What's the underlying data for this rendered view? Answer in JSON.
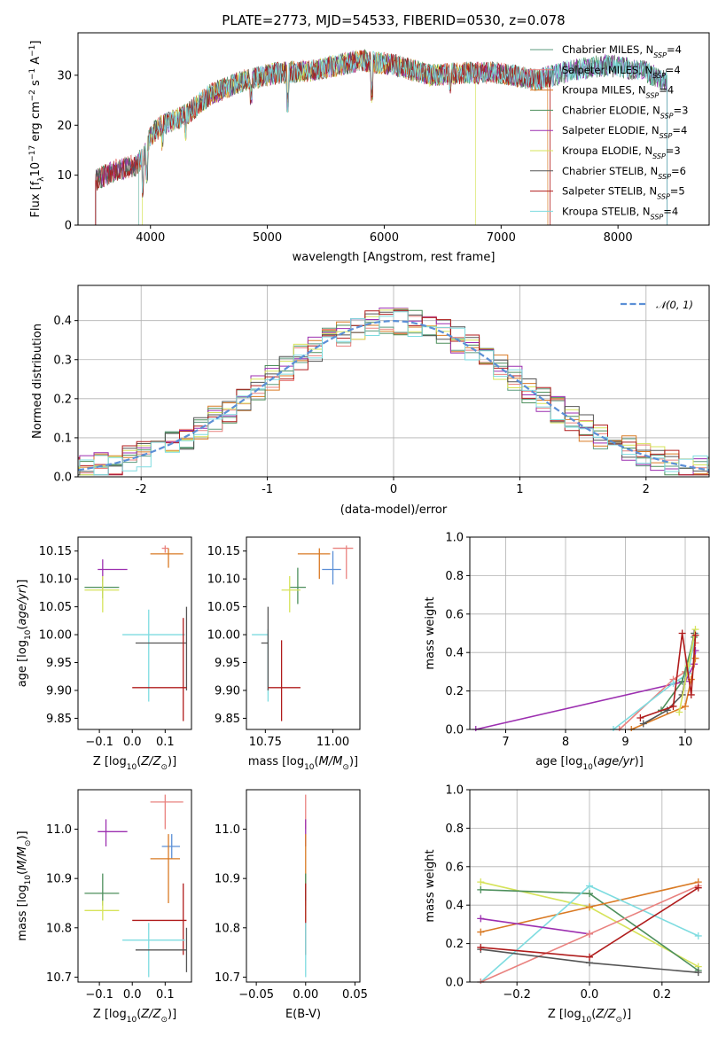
{
  "chart_data": [
    {
      "id": "spectrum",
      "type": "line",
      "title": "PLATE=2773, MJD=54533, FIBERID=0530, z=0.078",
      "xlabel": "wavelength [Angstrom, rest frame]",
      "ylabel_parts": [
        "Flux [f",
        "λ",
        "10",
        "−17",
        " erg cm",
        "−2",
        " s",
        "−1",
        " A",
        "−1",
        "]"
      ],
      "xlim": [
        3380,
        8780
      ],
      "ylim": [
        0,
        38.5
      ],
      "xticks": [
        4000,
        5000,
        6000,
        7000,
        8000
      ],
      "yticks": [
        0,
        10,
        20,
        30
      ],
      "grid": false,
      "legend_loc": "right",
      "series": [
        {
          "base": "Chabrier MILES, N",
          "sub": "SSP",
          "tail": "=4",
          "color": "#5b9b7e"
        },
        {
          "base": "Salpeter MILES, N",
          "sub": "SSP",
          "tail": "=4",
          "color": "#e9827f"
        },
        {
          "base": "Kroupa MILES, N",
          "sub": "SSP",
          "tail": "=4",
          "color": "#d97a24"
        },
        {
          "base": "Chabrier ELODIE, N",
          "sub": "SSP",
          "tail": "=3",
          "color": "#4d8f5c"
        },
        {
          "base": "Salpeter ELODIE, N",
          "sub": "SSP",
          "tail": "=4",
          "color": "#9c2fb0"
        },
        {
          "base": "Kroupa ELODIE, N",
          "sub": "SSP",
          "tail": "=3",
          "color": "#d6e35a"
        },
        {
          "base": "Chabrier STELIB, N",
          "sub": "SSP",
          "tail": "=6",
          "color": "#555555"
        },
        {
          "base": "Salpeter STELIB, N",
          "sub": "SSP",
          "tail": "=5",
          "color": "#b01c1c"
        },
        {
          "base": "Kroupa STELIB, N",
          "sub": "SSP",
          "tail": "=4",
          "color": "#7edce0"
        }
      ],
      "continuum": [
        [
          3530,
          9
        ],
        [
          3700,
          11
        ],
        [
          3880,
          12
        ],
        [
          3950,
          14
        ],
        [
          4000,
          18
        ],
        [
          4100,
          20
        ],
        [
          4300,
          22
        ],
        [
          4500,
          26
        ],
        [
          4800,
          29
        ],
        [
          5100,
          30.5
        ],
        [
          5400,
          31
        ],
        [
          5800,
          33
        ],
        [
          6100,
          32
        ],
        [
          6400,
          30
        ],
        [
          6700,
          30.5
        ],
        [
          7000,
          30.5
        ],
        [
          7300,
          29
        ],
        [
          7600,
          31
        ],
        [
          7900,
          32
        ],
        [
          8200,
          31
        ],
        [
          8400,
          29
        ]
      ]
    },
    {
      "id": "residuals",
      "type": "histogram",
      "xlabel": "(data-model)/error",
      "ylabel": "Normed distribution",
      "xlim": [
        -2.5,
        2.5
      ],
      "ylim": [
        0,
        0.49
      ],
      "xticks": [
        -2,
        -1,
        0,
        1,
        2
      ],
      "yticks": [
        0,
        0.1,
        0.2,
        0.3,
        0.4
      ],
      "grid": true,
      "bins": 46,
      "legend": "𝒩(0, 1)",
      "gaussian_color": "#5b8fd6"
    },
    {
      "id": "age_vs_Z",
      "type": "scatter",
      "xlabel": "Z [log10(Z/Z⊙)]",
      "ylabel": "age  [log10(age/yr)]",
      "xlim": [
        -0.165,
        0.18
      ],
      "ylim": [
        9.83,
        10.175
      ],
      "xticks": [
        -0.1,
        0,
        0.1
      ],
      "xticklabels": [
        "−0.1",
        "0.0",
        "0.1"
      ],
      "yticks": [
        9.85,
        9.9,
        9.95,
        10.0,
        10.05,
        10.1,
        10.15
      ],
      "yticklabels": [
        "9.85",
        "9.90",
        "9.95",
        "10.00",
        "10.05",
        "10.10",
        "10.15"
      ],
      "points": [
        {
          "x": 0.1,
          "y": 10.155,
          "xe": [
            0.09,
            0.11
          ],
          "ye": [
            10.147,
            10.16
          ],
          "color": "#e9827f"
        },
        {
          "x": 0.11,
          "y": 10.145,
          "xe": [
            0.055,
            0.155
          ],
          "ye": [
            10.12,
            10.155
          ],
          "color": "#d97a24"
        },
        {
          "x": -0.09,
          "y": 10.117,
          "xe": [
            -0.105,
            -0.015
          ],
          "ye": [
            10.095,
            10.135
          ],
          "color": "#9c2fb0"
        },
        {
          "x": -0.09,
          "y": 10.085,
          "xe": [
            -0.145,
            -0.04
          ],
          "ye": [
            10.065,
            10.1
          ],
          "color": "#4d8f5c"
        },
        {
          "x": -0.09,
          "y": 10.08,
          "xe": [
            -0.145,
            -0.04
          ],
          "ye": [
            10.04,
            10.105
          ],
          "color": "#d6e35a"
        },
        {
          "x": 0.05,
          "y": 10.0,
          "xe": [
            -0.03,
            0.16
          ],
          "ye": [
            9.88,
            10.045
          ],
          "color": "#7edce0"
        },
        {
          "x": 0.165,
          "y": 9.985,
          "xe": [
            0.01,
            0.165
          ],
          "ye": [
            9.9,
            10.05
          ],
          "color": "#555555"
        },
        {
          "x": 0.155,
          "y": 9.905,
          "xe": [
            0.0,
            0.165
          ],
          "ye": [
            9.845,
            10.03
          ],
          "color": "#b01c1c"
        }
      ]
    },
    {
      "id": "age_vs_mass",
      "type": "scatter",
      "xlabel": "mass [log10(M/M⊙)]",
      "ylabel": "",
      "xlim": [
        10.68,
        11.1
      ],
      "ylim": [
        9.83,
        10.175
      ],
      "xticks": [
        10.75,
        11.0
      ],
      "xticklabels": [
        "10.75",
        "11.00"
      ],
      "yticks": [
        9.85,
        9.9,
        9.95,
        10.0,
        10.05,
        10.1,
        10.15
      ],
      "yticklabels": [
        "9.85",
        "9.90",
        "9.95",
        "10.00",
        "10.05",
        "10.10",
        "10.15"
      ],
      "points": [
        {
          "x": 11.05,
          "y": 10.155,
          "xe": [
            11.0,
            11.075
          ],
          "ye": [
            10.1,
            10.16
          ],
          "color": "#e9827f"
        },
        {
          "x": 10.95,
          "y": 10.145,
          "xe": [
            10.87,
            10.99
          ],
          "ye": [
            10.1,
            10.155
          ],
          "color": "#d97a24"
        },
        {
          "x": 11.0,
          "y": 10.117,
          "xe": [
            10.96,
            11.03
          ],
          "ye": [
            10.09,
            10.15
          ],
          "color": "#5b8fd6"
        },
        {
          "x": 10.87,
          "y": 10.085,
          "xe": [
            10.84,
            10.9
          ],
          "ye": [
            10.055,
            10.12
          ],
          "color": "#4d8f5c"
        },
        {
          "x": 10.84,
          "y": 10.08,
          "xe": [
            10.81,
            10.88
          ],
          "ye": [
            10.04,
            10.105
          ],
          "color": "#d6e35a"
        },
        {
          "x": 10.76,
          "y": 10.0,
          "xe": [
            10.7,
            10.76
          ],
          "ye": [
            9.88,
            10.01
          ],
          "color": "#7edce0"
        },
        {
          "x": 10.76,
          "y": 9.985,
          "xe": [
            10.735,
            10.76
          ],
          "ye": [
            9.9,
            10.05
          ],
          "color": "#555555"
        },
        {
          "x": 10.81,
          "y": 9.905,
          "xe": [
            10.76,
            10.88
          ],
          "ye": [
            9.845,
            9.99
          ],
          "color": "#b01c1c"
        }
      ]
    },
    {
      "id": "mass_weight_vs_age",
      "type": "line",
      "xlabel": "age  [log10(age/yr)]",
      "ylabel": "mass weight",
      "xlim": [
        6.4,
        10.4
      ],
      "ylim": [
        0,
        1
      ],
      "xticks": [
        7,
        8,
        9,
        10
      ],
      "yticks": [
        0,
        0.2,
        0.4,
        0.6,
        0.8,
        1.0
      ],
      "yticklabels": [
        "0.0",
        "0.2",
        "0.4",
        "0.6",
        "0.8",
        "1.0"
      ],
      "grid": true,
      "series": [
        {
          "color": "#9c2fb0",
          "x": [
            6.5,
            10.0,
            10.15,
            10.17
          ],
          "y": [
            0.0,
            0.25,
            0.34,
            0.41
          ]
        },
        {
          "color": "#e9827f",
          "x": [
            8.9,
            9.8,
            10.0,
            10.17
          ],
          "y": [
            0.0,
            0.26,
            0.3,
            0.45
          ]
        },
        {
          "color": "#7edce0",
          "x": [
            8.8,
            9.8,
            10.05,
            10.17
          ],
          "y": [
            0.0,
            0.24,
            0.29,
            0.5
          ]
        },
        {
          "color": "#d97a24",
          "x": [
            9.1,
            10.0,
            10.1,
            10.17
          ],
          "y": [
            0.0,
            0.12,
            0.26,
            0.37
          ]
        },
        {
          "color": "#555555",
          "x": [
            9.3,
            9.7,
            9.95,
            10.15
          ],
          "y": [
            0.03,
            0.1,
            0.18,
            0.5
          ]
        },
        {
          "color": "#4d8f5c",
          "x": [
            9.6,
            9.95,
            10.15
          ],
          "y": [
            0.1,
            0.25,
            0.48
          ]
        },
        {
          "color": "#d6e35a",
          "x": [
            9.9,
            10.05,
            10.17
          ],
          "y": [
            0.09,
            0.33,
            0.52
          ]
        },
        {
          "color": "#b01c1c",
          "x": [
            9.25,
            9.8,
            9.95,
            10.1,
            10.17
          ],
          "y": [
            0.06,
            0.12,
            0.5,
            0.18,
            0.49
          ]
        }
      ]
    },
    {
      "id": "mass_vs_Z",
      "type": "scatter",
      "xlabel": "Z [log10(Z/Z⊙)]",
      "ylabel": "mass [log10(M/M⊙)]",
      "xlim": [
        -0.165,
        0.18
      ],
      "ylim": [
        10.69,
        11.08
      ],
      "xticks": [
        -0.1,
        0,
        0.1
      ],
      "xticklabels": [
        "−0.1",
        "0.0",
        "0.1"
      ],
      "yticks": [
        10.7,
        10.8,
        10.9,
        11.0
      ],
      "yticklabels": [
        "10.7",
        "10.8",
        "10.9",
        "11.0"
      ],
      "points": [
        {
          "x": 0.1,
          "y": 11.055,
          "xe": [
            0.055,
            0.155
          ],
          "ye": [
            11.0,
            11.07
          ],
          "color": "#e9827f"
        },
        {
          "x": -0.08,
          "y": 10.995,
          "xe": [
            -0.105,
            -0.015
          ],
          "ye": [
            10.965,
            11.02
          ],
          "color": "#9c2fb0"
        },
        {
          "x": 0.12,
          "y": 10.965,
          "xe": [
            0.09,
            0.145
          ],
          "ye": [
            10.94,
            10.99
          ],
          "color": "#5b8fd6"
        },
        {
          "x": 0.11,
          "y": 10.94,
          "xe": [
            0.055,
            0.145
          ],
          "ye": [
            10.85,
            10.99
          ],
          "color": "#d97a24"
        },
        {
          "x": -0.09,
          "y": 10.87,
          "xe": [
            -0.145,
            -0.04
          ],
          "ye": [
            10.845,
            10.91
          ],
          "color": "#4d8f5c"
        },
        {
          "x": -0.09,
          "y": 10.835,
          "xe": [
            -0.145,
            -0.04
          ],
          "ye": [
            10.815,
            10.855
          ],
          "color": "#d6e35a"
        },
        {
          "x": 0.155,
          "y": 10.815,
          "xe": [
            0.0,
            0.165
          ],
          "ye": [
            10.745,
            10.89
          ],
          "color": "#b01c1c"
        },
        {
          "x": 0.05,
          "y": 10.775,
          "xe": [
            -0.03,
            0.16
          ],
          "ye": [
            10.7,
            10.81
          ],
          "color": "#7edce0"
        },
        {
          "x": 0.165,
          "y": 10.755,
          "xe": [
            0.01,
            0.165
          ],
          "ye": [
            10.71,
            10.8
          ],
          "color": "#555555"
        }
      ]
    },
    {
      "id": "mass_vs_EBV",
      "type": "scatter",
      "xlabel": "E(B-V)",
      "ylabel": "",
      "xlim": [
        -0.06,
        0.055
      ],
      "ylim": [
        10.69,
        11.08
      ],
      "xticks": [
        -0.05,
        0,
        0.05
      ],
      "xticklabels": [
        "−0.05",
        "0.00",
        "0.05"
      ],
      "yticks": [
        10.7,
        10.8,
        10.9,
        11.0
      ],
      "yticklabels": [
        "10.7",
        "10.8",
        "10.9",
        "11.0"
      ],
      "points": [
        {
          "x": 0,
          "y": 11.055,
          "xe": [
            0,
            0
          ],
          "ye": [
            11.0,
            11.07
          ],
          "color": "#e9827f"
        },
        {
          "x": 0,
          "y": 10.995,
          "xe": [
            0,
            0
          ],
          "ye": [
            10.965,
            11.02
          ],
          "color": "#9c2fb0"
        },
        {
          "x": 0,
          "y": 10.94,
          "xe": [
            0,
            0
          ],
          "ye": [
            10.85,
            10.99
          ],
          "color": "#d97a24"
        },
        {
          "x": 0,
          "y": 10.87,
          "xe": [
            0,
            0
          ],
          "ye": [
            10.845,
            10.91
          ],
          "color": "#4d8f5c"
        },
        {
          "x": 0,
          "y": 10.835,
          "xe": [
            0,
            0
          ],
          "ye": [
            10.815,
            10.855
          ],
          "color": "#d6e35a"
        },
        {
          "x": 0,
          "y": 10.815,
          "xe": [
            0,
            0
          ],
          "ye": [
            10.745,
            10.89
          ],
          "color": "#b01c1c"
        },
        {
          "x": 0,
          "y": 10.775,
          "xe": [
            0,
            0
          ],
          "ye": [
            10.7,
            10.81
          ],
          "color": "#7edce0"
        }
      ]
    },
    {
      "id": "mass_weight_vs_Z",
      "type": "line",
      "xlabel": "Z [log10(Z/Z⊙)]",
      "ylabel": "mass weight",
      "xlim": [
        -0.33,
        0.33
      ],
      "ylim": [
        0,
        1
      ],
      "xticks": [
        -0.2,
        0,
        0.2
      ],
      "xticklabels": [
        "−0.2",
        "0.0",
        "0.2"
      ],
      "yticks": [
        0,
        0.2,
        0.4,
        0.6,
        0.8,
        1.0
      ],
      "yticklabels": [
        "0.0",
        "0.2",
        "0.4",
        "0.6",
        "0.8",
        "1.0"
      ],
      "grid": true,
      "series": [
        {
          "color": "#d6e35a",
          "x": [
            -0.3,
            0.0,
            0.3
          ],
          "y": [
            0.52,
            0.39,
            0.08
          ]
        },
        {
          "color": "#4d8f5c",
          "x": [
            -0.3,
            0.0,
            0.3
          ],
          "y": [
            0.48,
            0.46,
            0.06
          ]
        },
        {
          "color": "#d97a24",
          "x": [
            -0.3,
            0.0,
            0.3
          ],
          "y": [
            0.26,
            0.39,
            0.52
          ]
        },
        {
          "color": "#7edce0",
          "x": [
            -0.3,
            0.0,
            0.3
          ],
          "y": [
            0.0,
            0.5,
            0.24
          ]
        },
        {
          "color": "#9c2fb0",
          "x": [
            -0.3,
            0.0
          ],
          "y": [
            0.33,
            0.25
          ]
        },
        {
          "color": "#e9827f",
          "x": [
            -0.3,
            0.0,
            0.3
          ],
          "y": [
            0.0,
            0.25,
            0.5
          ]
        },
        {
          "color": "#555555",
          "x": [
            -0.3,
            0.0,
            0.3
          ],
          "y": [
            0.17,
            0.1,
            0.05
          ]
        },
        {
          "color": "#b01c1c",
          "x": [
            -0.3,
            0.0,
            0.3
          ],
          "y": [
            0.18,
            0.13,
            0.49
          ]
        }
      ]
    }
  ]
}
